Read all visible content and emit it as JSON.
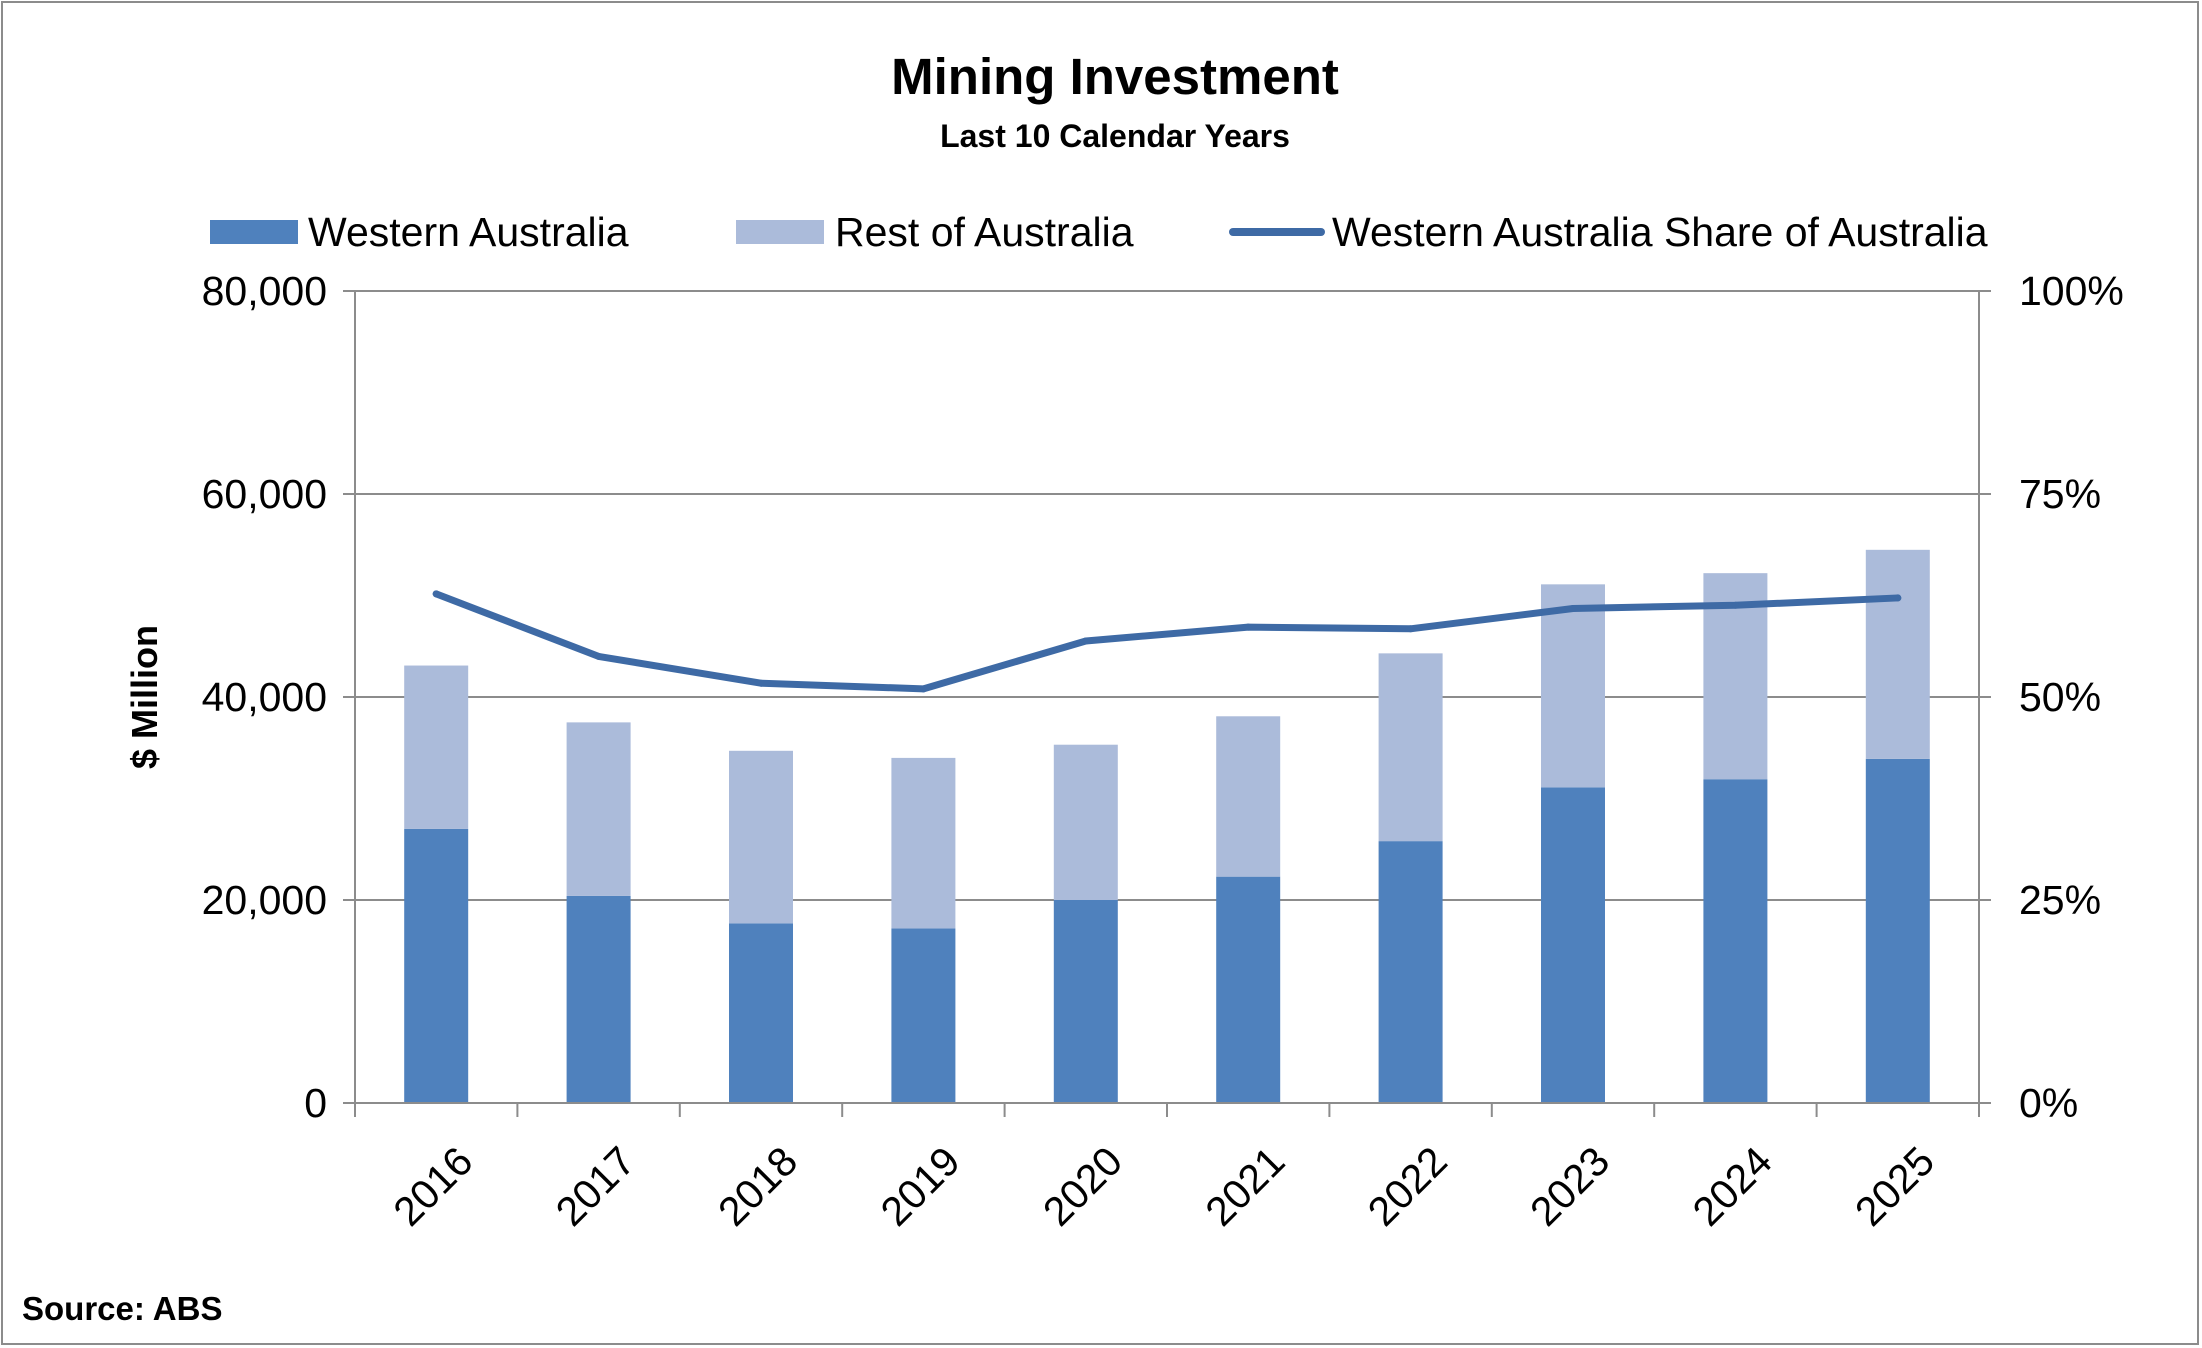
{
  "chart_data": {
    "type": "bar",
    "stacked": true,
    "title": "Mining Investment",
    "subtitle": "Last 10 Calendar Years",
    "xlabel": "",
    "ylabel": "$ Million",
    "y2label": "",
    "source": "Source: ABS",
    "categories": [
      "2016",
      "2017",
      "2018",
      "2019",
      "2020",
      "2021",
      "2022",
      "2023",
      "2024",
      "2025"
    ],
    "series": [
      {
        "name": "Western Australia",
        "type": "bar",
        "axis": "left",
        "color": "#4f81bd",
        "values": [
          27000,
          20400,
          17700,
          17200,
          20000,
          22300,
          25800,
          31100,
          31900,
          33900
        ]
      },
      {
        "name": "Rest of Australia",
        "type": "bar",
        "axis": "left",
        "color": "#abbbda",
        "values": [
          16100,
          17100,
          17000,
          16800,
          15300,
          15800,
          18500,
          20000,
          20300,
          20600
        ]
      },
      {
        "name": "Western Australia Share of Australia",
        "type": "line",
        "axis": "right",
        "color": "#3e6aa5",
        "values": [
          62.7,
          55.0,
          51.7,
          51.0,
          56.9,
          58.6,
          58.4,
          60.9,
          61.3,
          62.2
        ]
      }
    ],
    "ylim": [
      0,
      80000
    ],
    "y_ticks": [
      0,
      20000,
      40000,
      60000,
      80000
    ],
    "y_tick_labels": [
      "0",
      "20,000",
      "40,000",
      "60,000",
      "80,000"
    ],
    "y2lim": [
      0,
      100
    ],
    "y2_ticks": [
      0,
      25,
      50,
      75,
      100
    ],
    "y2_tick_labels": [
      "0%",
      "25%",
      "50%",
      "75%",
      "100%"
    ],
    "grid": true,
    "legend_position": "top"
  }
}
